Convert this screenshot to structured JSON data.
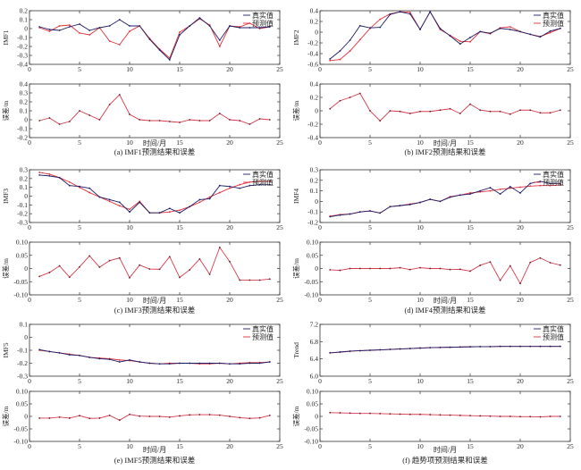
{
  "legend": {
    "real": "真实值",
    "pred": "预测值"
  },
  "colors": {
    "real": "#1c1c66",
    "pred": "#e0303a",
    "error": "#d83a4a",
    "axis": "#333333"
  },
  "chart_data": [
    {
      "type": "line",
      "caption": "(a) IMF1预测结果和误差",
      "ylabel": "IMF1",
      "err_ylabel": "误差/m",
      "xlabel": "时间/月",
      "x": [
        1,
        2,
        3,
        4,
        5,
        6,
        7,
        8,
        9,
        10,
        11,
        12,
        13,
        14,
        15,
        16,
        17,
        18,
        19,
        20,
        21,
        22,
        23,
        24
      ],
      "xlim": [
        0,
        25
      ],
      "xticks": [
        "0",
        "5",
        "10",
        "15",
        "20",
        "25"
      ],
      "ylim": [
        -0.4,
        0.2
      ],
      "yticks": [
        "-0.4",
        "-0.3",
        "-0.2",
        "-0.1",
        "0",
        "0.1",
        "0.2"
      ],
      "series": [
        {
          "name": "真实值",
          "values": [
            0.02,
            -0.01,
            -0.02,
            0.02,
            0.05,
            -0.02,
            0.01,
            0.03,
            0.1,
            0.03,
            0.03,
            -0.12,
            -0.24,
            -0.35,
            -0.07,
            0.03,
            0.12,
            0.03,
            -0.13,
            0.03,
            0.01,
            0.01,
            0.01,
            0.02
          ]
        },
        {
          "name": "预测值",
          "values": [
            0.01,
            -0.03,
            0.03,
            0.04,
            -0.05,
            -0.07,
            0.01,
            -0.14,
            -0.18,
            -0.03,
            0.03,
            -0.11,
            -0.23,
            -0.33,
            -0.04,
            0.03,
            0.11,
            0.04,
            -0.2,
            0.03,
            0.02,
            0.06,
            0.0,
            0.02
          ]
        }
      ],
      "error": {
        "ylim": [
          -0.2,
          0.4
        ],
        "yticks": [
          "-0.2",
          "-0.1",
          "0",
          "0.1",
          "0.2",
          "0.3",
          "0.4"
        ],
        "values": [
          -0.01,
          0.02,
          -0.05,
          -0.02,
          0.1,
          0.05,
          0.0,
          0.17,
          0.28,
          0.06,
          0.0,
          -0.01,
          -0.01,
          -0.02,
          -0.03,
          0.0,
          -0.01,
          -0.01,
          0.07,
          0.0,
          -0.01,
          -0.05,
          0.01,
          0.0
        ]
      }
    },
    {
      "type": "line",
      "caption": "(b) IMF2预测结果和误差",
      "ylabel": "IMF2",
      "err_ylabel": "误差/m",
      "xlabel": "时间/月",
      "x": [
        1,
        2,
        3,
        4,
        5,
        6,
        7,
        8,
        9,
        10,
        11,
        12,
        13,
        14,
        15,
        16,
        17,
        18,
        19,
        20,
        21,
        22,
        23,
        24
      ],
      "xlim": [
        0,
        25
      ],
      "xticks": [
        "0",
        "5",
        "10",
        "15",
        "20",
        "25"
      ],
      "ylim": [
        -0.6,
        0.4
      ],
      "yticks": [
        "-0.6",
        "-0.4",
        "-0.2",
        "0",
        "0.2",
        "0.4"
      ],
      "series": [
        {
          "name": "真实值",
          "values": [
            -0.5,
            -0.35,
            -0.15,
            0.12,
            0.08,
            0.09,
            0.33,
            0.38,
            0.34,
            0.05,
            0.38,
            0.07,
            -0.07,
            -0.22,
            -0.1,
            0.01,
            -0.02,
            0.07,
            0.05,
            0.01,
            -0.04,
            -0.09,
            0.02,
            0.07
          ]
        },
        {
          "name": "预测值",
          "values": [
            -0.53,
            -0.51,
            -0.35,
            -0.14,
            0.07,
            0.24,
            0.34,
            0.38,
            0.37,
            0.05,
            0.38,
            0.05,
            -0.06,
            -0.17,
            -0.18,
            0.01,
            -0.03,
            0.08,
            0.1,
            0.01,
            -0.04,
            -0.08,
            -0.01,
            0.07
          ]
        }
      ],
      "error": {
        "ylim": [
          -0.4,
          0.4
        ],
        "yticks": [
          "-0.4",
          "-0.2",
          "0",
          "0.2",
          "0.4"
        ],
        "values": [
          0.03,
          0.15,
          0.2,
          0.26,
          0.0,
          -0.15,
          0.0,
          -0.01,
          -0.04,
          -0.01,
          -0.01,
          0.01,
          0.03,
          -0.04,
          0.1,
          0.01,
          -0.01,
          -0.01,
          -0.05,
          0.01,
          0.01,
          -0.03,
          -0.03,
          0.01
        ]
      }
    },
    {
      "type": "line",
      "caption": "(c) IMF3预测结果和误差",
      "ylabel": "IMF3",
      "err_ylabel": "误差/m",
      "xlabel": "时间/月",
      "x": [
        1,
        2,
        3,
        4,
        5,
        6,
        7,
        8,
        9,
        10,
        11,
        12,
        13,
        14,
        15,
        16,
        17,
        18,
        19,
        20,
        21,
        22,
        23,
        24
      ],
      "xlim": [
        0,
        25
      ],
      "xticks": [
        "0",
        "5",
        "10",
        "15",
        "20",
        "25"
      ],
      "ylim": [
        -0.3,
        0.3
      ],
      "yticks": [
        "-0.3",
        "-0.2",
        "-0.1",
        "0",
        "0.1",
        "0.2",
        "0.3"
      ],
      "series": [
        {
          "name": "真实值",
          "values": [
            0.24,
            0.23,
            0.21,
            0.12,
            0.11,
            0.09,
            -0.01,
            -0.04,
            -0.07,
            -0.18,
            -0.07,
            -0.19,
            -0.19,
            -0.14,
            -0.19,
            -0.12,
            -0.04,
            -0.03,
            0.12,
            0.11,
            0.09,
            0.12,
            0.13,
            0.13
          ]
        },
        {
          "name": "预测值",
          "values": [
            0.27,
            0.25,
            0.21,
            0.16,
            0.1,
            0.04,
            -0.01,
            -0.06,
            -0.11,
            -0.15,
            -0.06,
            -0.19,
            -0.19,
            -0.18,
            -0.16,
            -0.12,
            -0.07,
            -0.01,
            0.04,
            0.09,
            0.13,
            0.16,
            0.17,
            0.17
          ]
        }
      ],
      "error": {
        "ylim": [
          -0.1,
          0.1
        ],
        "yticks": [
          "-0.10",
          "-0.05",
          "0",
          "0.05",
          "0.10"
        ],
        "values": [
          -0.03,
          -0.015,
          0.01,
          -0.033,
          0.006,
          0.048,
          0.005,
          0.03,
          0.04,
          -0.035,
          0.013,
          -0.002,
          -0.003,
          0.045,
          -0.034,
          -0.005,
          0.036,
          -0.022,
          0.08,
          0.026,
          -0.044,
          -0.044,
          -0.044,
          -0.04
        ]
      }
    },
    {
      "type": "line",
      "caption": "(d) IMF4预测结果和误差",
      "ylabel": "IMF4",
      "err_ylabel": "误差/m",
      "xlabel": "时间/月",
      "x": [
        1,
        2,
        3,
        4,
        5,
        6,
        7,
        8,
        9,
        10,
        11,
        12,
        13,
        14,
        15,
        16,
        17,
        18,
        19,
        20,
        21,
        22,
        23,
        24
      ],
      "xlim": [
        0,
        25
      ],
      "xticks": [
        "0",
        "5",
        "10",
        "15",
        "20",
        "25"
      ],
      "ylim": [
        -0.2,
        0.3
      ],
      "yticks": [
        "-0.2",
        "-0.1",
        "0",
        "0.1",
        "0.2",
        "0.3"
      ],
      "series": [
        {
          "name": "真实值",
          "values": [
            -0.145,
            -0.13,
            -0.12,
            -0.1,
            -0.09,
            -0.11,
            -0.05,
            -0.04,
            -0.03,
            -0.01,
            0.02,
            0.0,
            0.04,
            0.06,
            0.07,
            0.1,
            0.13,
            0.07,
            0.14,
            0.08,
            0.17,
            0.19,
            0.17,
            0.17
          ]
        },
        {
          "name": "预测值",
          "values": [
            -0.14,
            -0.125,
            -0.12,
            -0.1,
            -0.09,
            -0.11,
            -0.05,
            -0.04,
            -0.025,
            -0.01,
            0.02,
            0.0,
            0.045,
            0.06,
            0.08,
            0.09,
            0.1,
            0.115,
            0.125,
            0.135,
            0.145,
            0.15,
            0.15,
            0.155
          ]
        }
      ],
      "error": {
        "ylim": [
          -0.1,
          0.1
        ],
        "yticks": [
          "-0.10",
          "-0.05",
          "0",
          "0.05",
          "0.10"
        ],
        "values": [
          -0.005,
          -0.007,
          0.0,
          0.0,
          0.0,
          0.0,
          0.0,
          0.003,
          -0.004,
          0.003,
          0.0,
          0.0,
          -0.004,
          -0.003,
          -0.01,
          0.012,
          0.025,
          -0.045,
          0.01,
          -0.057,
          0.023,
          0.04,
          0.022,
          0.013
        ]
      }
    },
    {
      "type": "line",
      "caption": "(e) IMF5预测结果和误差",
      "ylabel": "IMF5",
      "err_ylabel": "误差/m",
      "xlabel": "时间/月",
      "x": [
        1,
        2,
        3,
        4,
        5,
        6,
        7,
        8,
        9,
        10,
        11,
        12,
        13,
        14,
        15,
        16,
        17,
        18,
        19,
        20,
        21,
        22,
        23,
        24
      ],
      "xlim": [
        0,
        25
      ],
      "xticks": [
        "0",
        "5",
        "10",
        "15",
        "20",
        "25"
      ],
      "ylim": [
        -0.3,
        0.1
      ],
      "yticks": [
        "-0.3",
        "-0.2",
        "-0.1",
        "0",
        "0.1"
      ],
      "series": [
        {
          "name": "真实值",
          "values": [
            -0.095,
            -0.11,
            -0.12,
            -0.135,
            -0.14,
            -0.155,
            -0.165,
            -0.17,
            -0.19,
            -0.175,
            -0.19,
            -0.2,
            -0.205,
            -0.205,
            -0.2,
            -0.2,
            -0.2,
            -0.2,
            -0.2,
            -0.205,
            -0.205,
            -0.2,
            -0.2,
            -0.19
          ]
        },
        {
          "name": "预测值",
          "values": [
            -0.1,
            -0.11,
            -0.12,
            -0.13,
            -0.14,
            -0.155,
            -0.16,
            -0.165,
            -0.175,
            -0.18,
            -0.19,
            -0.2,
            -0.205,
            -0.2,
            -0.2,
            -0.2,
            -0.205,
            -0.205,
            -0.2,
            -0.205,
            -0.2,
            -0.195,
            -0.195,
            -0.19
          ]
        }
      ],
      "error": {
        "ylim": [
          -0.1,
          0.1
        ],
        "yticks": [
          "-0.10",
          "-0.05",
          "0",
          "0.05",
          "0.10"
        ],
        "values": [
          -0.007,
          -0.007,
          -0.003,
          -0.007,
          0.003,
          -0.008,
          -0.007,
          0.004,
          -0.015,
          0.008,
          0.001,
          0.0,
          0.0,
          -0.003,
          0.002,
          0.006,
          0.007,
          0.007,
          0.005,
          0.0,
          -0.005,
          -0.008,
          -0.006,
          0.004
        ]
      }
    },
    {
      "type": "line",
      "caption": "(f) 趋势项预测结果和误差",
      "ylabel": "Trend",
      "err_ylabel": "误差/m",
      "xlabel": "时间/月",
      "x": [
        1,
        2,
        3,
        4,
        5,
        6,
        7,
        8,
        9,
        10,
        11,
        12,
        13,
        14,
        15,
        16,
        17,
        18,
        19,
        20,
        21,
        22,
        23,
        24
      ],
      "xlim": [
        0,
        25
      ],
      "xticks": [
        "0",
        "5",
        "10",
        "15",
        "20",
        "25"
      ],
      "ylim": [
        6.0,
        7.2
      ],
      "yticks": [
        "6.0",
        "6.4",
        "6.8",
        "7.2"
      ],
      "series": [
        {
          "name": "真实值",
          "values": [
            6.54,
            6.56,
            6.58,
            6.59,
            6.6,
            6.61,
            6.62,
            6.63,
            6.64,
            6.65,
            6.66,
            6.665,
            6.67,
            6.675,
            6.68,
            6.685,
            6.685,
            6.69,
            6.69,
            6.69,
            6.69,
            6.69,
            6.69,
            6.69
          ]
        },
        {
          "name": "预测值",
          "values": [
            6.54,
            6.555,
            6.575,
            6.59,
            6.6,
            6.61,
            6.62,
            6.63,
            6.64,
            6.65,
            6.66,
            6.665,
            6.67,
            6.675,
            6.68,
            6.685,
            6.685,
            6.69,
            6.69,
            6.69,
            6.69,
            6.69,
            6.69,
            6.69
          ]
        }
      ],
      "error": {
        "ylim": [
          -0.1,
          0.1
        ],
        "yticks": [
          "-0.10",
          "-0.05",
          "0",
          "0.05",
          "0.10"
        ],
        "values": [
          0.015,
          0.014,
          0.013,
          0.012,
          0.012,
          0.011,
          0.01,
          0.009,
          0.008,
          0.008,
          0.007,
          0.006,
          0.005,
          0.004,
          0.003,
          0.002,
          0.001,
          0.0,
          0.0,
          -0.001,
          -0.001,
          -0.002,
          0.0,
          0.0
        ]
      }
    }
  ]
}
